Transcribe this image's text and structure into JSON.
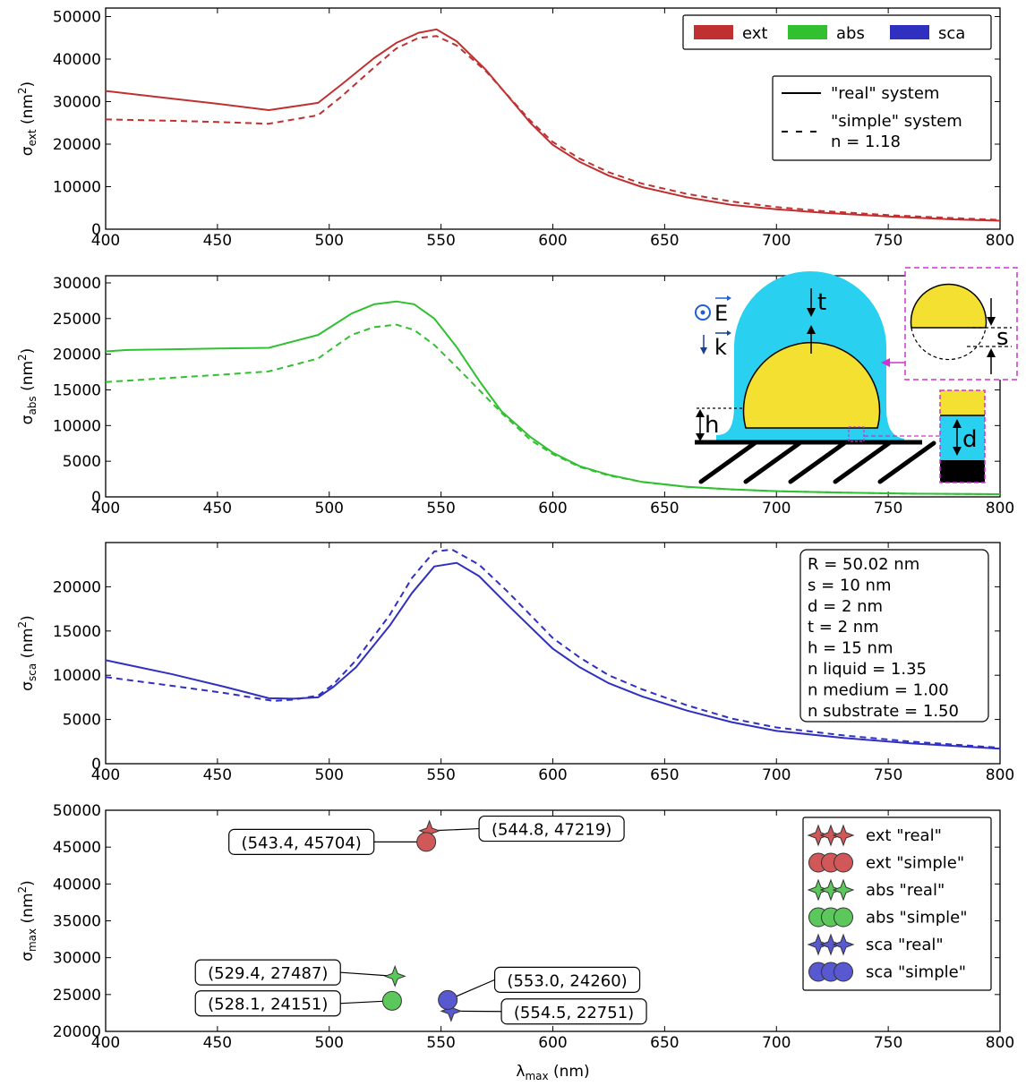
{
  "chart_data": [
    {
      "type": "line",
      "ylabel": "σext (nm²)",
      "ylabel_main": "σ",
      "ylabel_sub": "ext",
      "ylabel_unit": " (nm",
      "ylabel_sup": "2",
      "ylabel_close": ")",
      "xlim": [
        400,
        800
      ],
      "ylim": [
        0,
        52000
      ],
      "xticks": [
        400,
        450,
        500,
        550,
        600,
        650,
        700,
        750,
        800
      ],
      "yticks": [
        0,
        10000,
        20000,
        30000,
        40000,
        50000
      ],
      "color": "#c03030",
      "series": [
        {
          "name": "\"real\" system",
          "style": "solid",
          "x": [
            400,
            410,
            430,
            450,
            473,
            495,
            505,
            520,
            530,
            540,
            548,
            557,
            570,
            590,
            600,
            612,
            625,
            640,
            660,
            680,
            700,
            720,
            750,
            780,
            800
          ],
          "y": [
            32500,
            31900,
            30700,
            29500,
            28000,
            29700,
            33800,
            40200,
            43800,
            46200,
            47000,
            44200,
            37500,
            25000,
            19800,
            15800,
            12600,
            9900,
            7500,
            5700,
            4700,
            3900,
            3000,
            2300,
            2000
          ]
        },
        {
          "name": "\"simple\" system n = 1.18",
          "style": "dashed",
          "x": [
            400,
            430,
            450,
            473,
            495,
            505,
            520,
            530,
            540,
            548,
            557,
            570,
            590,
            600,
            612,
            625,
            640,
            660,
            680,
            700,
            720,
            750,
            780,
            800
          ],
          "y": [
            25800,
            25500,
            25200,
            24800,
            26800,
            31000,
            38000,
            42500,
            45000,
            45400,
            43200,
            37200,
            25500,
            20500,
            16600,
            13400,
            10700,
            8300,
            6500,
            5200,
            4300,
            3300,
            2600,
            2200
          ]
        }
      ],
      "legend_colors": [
        {
          "label": "ext",
          "color": "#c03030"
        },
        {
          "label": "abs",
          "color": "#30c030"
        },
        {
          "label": "sca",
          "color": "#3030c0"
        }
      ],
      "legend_styles": [
        {
          "label": "\"real\" system",
          "style": "solid"
        },
        {
          "label": "\"simple\" system",
          "label2": "n = 1.18",
          "style": "dashed"
        }
      ]
    },
    {
      "type": "line",
      "ylabel": "σabs (nm²)",
      "ylabel_main": "σ",
      "ylabel_sub": "abs",
      "ylabel_unit": " (nm",
      "ylabel_sup": "2",
      "ylabel_close": ")",
      "xlim": [
        400,
        800
      ],
      "ylim": [
        0,
        31000
      ],
      "xticks": [
        400,
        450,
        500,
        550,
        600,
        650,
        700,
        750,
        800
      ],
      "yticks": [
        0,
        5000,
        10000,
        15000,
        20000,
        25000,
        30000
      ],
      "color": "#30c030",
      "series": [
        {
          "name": "\"real\" system",
          "style": "solid",
          "x": [
            400,
            410,
            430,
            450,
            473,
            495,
            510,
            520,
            530,
            538,
            547,
            557,
            567,
            577,
            590,
            600,
            612,
            625,
            640,
            660,
            680,
            700,
            730,
            760,
            800
          ],
          "y": [
            20400,
            20600,
            20700,
            20800,
            20900,
            22700,
            25700,
            27000,
            27400,
            27000,
            25000,
            21000,
            16300,
            12000,
            8400,
            6200,
            4300,
            3100,
            2100,
            1400,
            1050,
            800,
            600,
            450,
            380
          ]
        },
        {
          "name": "\"simple\" system",
          "style": "dashed",
          "x": [
            400,
            430,
            450,
            473,
            495,
            510,
            520,
            530,
            538,
            547,
            557,
            567,
            577,
            590,
            600,
            612,
            625,
            640,
            660,
            680,
            700,
            730,
            760,
            800
          ],
          "y": [
            16100,
            16700,
            17100,
            17600,
            19400,
            22700,
            23800,
            24150,
            23400,
            21300,
            18200,
            15000,
            11800,
            8000,
            6000,
            4200,
            3000,
            2100,
            1400,
            1050,
            800,
            600,
            450,
            380
          ]
        }
      ],
      "diagram": {
        "E_label": "E",
        "k_label": "k",
        "t_label": "t",
        "h_label": "h",
        "s_label": "s",
        "d_label": "d"
      }
    },
    {
      "type": "line",
      "ylabel": "σsca (nm²)",
      "ylabel_main": "σ",
      "ylabel_sub": "sca",
      "ylabel_unit": " (nm",
      "ylabel_sup": "2",
      "ylabel_close": ")",
      "xlim": [
        400,
        800
      ],
      "ylim": [
        0,
        25000
      ],
      "xticks": [
        400,
        450,
        500,
        550,
        600,
        650,
        700,
        750,
        800
      ],
      "yticks": [
        0,
        5000,
        10000,
        15000,
        20000
      ],
      "color": "#3030c0",
      "series": [
        {
          "name": "\"real\" system",
          "style": "solid",
          "x": [
            400,
            430,
            453,
            473,
            484,
            495,
            502,
            512,
            527,
            537,
            547,
            557,
            567,
            580,
            600,
            612,
            625,
            640,
            660,
            680,
            700,
            730,
            760,
            800
          ],
          "y": [
            11700,
            10100,
            8700,
            7400,
            7350,
            7500,
            8700,
            10900,
            15600,
            19300,
            22300,
            22700,
            21200,
            17900,
            13000,
            10900,
            9100,
            7600,
            6000,
            4700,
            3700,
            2900,
            2300,
            1700
          ]
        },
        {
          "name": "\"simple\" system",
          "style": "dashed",
          "x": [
            400,
            430,
            453,
            475,
            484,
            495,
            502,
            512,
            527,
            537,
            547,
            555,
            567,
            580,
            600,
            612,
            625,
            640,
            660,
            680,
            700,
            730,
            760,
            800
          ],
          "y": [
            9800,
            8800,
            8000,
            7100,
            7250,
            7700,
            9000,
            11700,
            16800,
            21000,
            24000,
            24200,
            22500,
            19400,
            14200,
            12000,
            10000,
            8400,
            6600,
            5100,
            4100,
            3200,
            2500,
            1800
          ]
        }
      ],
      "params": [
        "R = 50.02 nm",
        "s = 10 nm",
        "d = 2 nm",
        "t = 2 nm",
        "h = 15 nm",
        "n liquid = 1.35",
        "n medium = 1.00",
        "n substrate = 1.50"
      ]
    },
    {
      "type": "scatter",
      "ylabel": "σmax (nm²)",
      "ylabel_main": "σ",
      "ylabel_sub": "max",
      "ylabel_unit": " (nm",
      "ylabel_sup": "2",
      "ylabel_close": ")",
      "xlabel": "λmax (nm)",
      "xlabel_main": "λ",
      "xlabel_sub": "max",
      "xlabel_unit": " (nm)",
      "xlim": [
        400,
        800
      ],
      "ylim": [
        20000,
        50000
      ],
      "xticks": [
        400,
        450,
        500,
        550,
        600,
        650,
        700,
        750,
        800
      ],
      "yticks": [
        20000,
        25000,
        30000,
        35000,
        40000,
        45000,
        50000
      ],
      "points": [
        {
          "series": "ext \"real\"",
          "x": 544.8,
          "y": 47219,
          "marker": "star",
          "color": "#d05858",
          "label": "(544.8, 47219)",
          "side": "right",
          "lx": 567,
          "ly": 47500
        },
        {
          "series": "ext \"simple\"",
          "x": 543.4,
          "y": 45704,
          "marker": "circle",
          "color": "#d05858",
          "label": "(543.4, 45704)",
          "side": "left",
          "lx": 520,
          "ly": 45704
        },
        {
          "series": "abs \"real\"",
          "x": 529.4,
          "y": 27487,
          "marker": "star",
          "color": "#5cc85c",
          "label": "(529.4, 27487)",
          "side": "left",
          "lx": 505,
          "ly": 28000
        },
        {
          "series": "abs \"simple\"",
          "x": 528.1,
          "y": 24151,
          "marker": "circle",
          "color": "#5cc85c",
          "label": "(528.1, 24151)",
          "side": "left",
          "lx": 505,
          "ly": 23800
        },
        {
          "series": "sca \"real\"",
          "x": 554.5,
          "y": 22751,
          "marker": "star",
          "color": "#5858d0",
          "label": "(554.5, 22751)",
          "side": "right",
          "lx": 577,
          "ly": 22700
        },
        {
          "series": "sca \"simple\"",
          "x": 553.0,
          "y": 24260,
          "marker": "circle",
          "color": "#5858d0",
          "label": "(553.0, 24260)",
          "side": "right",
          "lx": 574,
          "ly": 27000
        }
      ],
      "legend": [
        {
          "label": "ext \"real\"",
          "marker": "star",
          "color": "#d05858"
        },
        {
          "label": "ext \"simple\"",
          "marker": "circle",
          "color": "#d05858"
        },
        {
          "label": "abs \"real\"",
          "marker": "star",
          "color": "#5cc85c"
        },
        {
          "label": "abs \"simple\"",
          "marker": "circle",
          "color": "#5cc85c"
        },
        {
          "label": "sca \"real\"",
          "marker": "star",
          "color": "#5858d0"
        },
        {
          "label": "sca \"simple\"",
          "marker": "circle",
          "color": "#5858d0"
        }
      ]
    }
  ]
}
